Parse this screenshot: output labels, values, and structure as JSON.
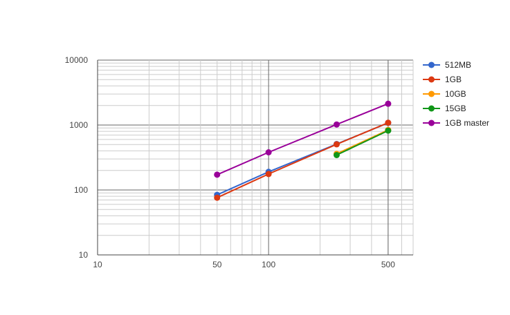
{
  "chart_data": {
    "type": "line",
    "x_scale": "log",
    "y_scale": "log",
    "xlim": [
      10,
      700
    ],
    "ylim": [
      10,
      10000
    ],
    "x_ticks": [
      10,
      50,
      100,
      500
    ],
    "x_tick_labels": [
      "10",
      "50",
      "100",
      "500"
    ],
    "y_ticks": [
      10,
      100,
      1000,
      10000
    ],
    "y_tick_labels": [
      "10",
      "100",
      "1000",
      "10000"
    ],
    "grid": true,
    "legend_position": "right",
    "series": [
      {
        "name": "512MB",
        "color": "#3366cc",
        "points": [
          [
            50,
            84
          ],
          [
            100,
            190
          ],
          [
            250,
            510
          ],
          [
            500,
            1080
          ]
        ]
      },
      {
        "name": "1GB",
        "color": "#dc3912",
        "points": [
          [
            50,
            76
          ],
          [
            100,
            176
          ],
          [
            250,
            505
          ],
          [
            500,
            1085
          ]
        ]
      },
      {
        "name": "10GB",
        "color": "#ff9900",
        "points": [
          [
            250,
            360
          ],
          [
            500,
            840
          ]
        ]
      },
      {
        "name": "15GB",
        "color": "#109618",
        "points": [
          [
            250,
            345
          ],
          [
            500,
            820
          ]
        ]
      },
      {
        "name": "1GB master",
        "color": "#990099",
        "points": [
          [
            50,
            172
          ],
          [
            100,
            380
          ],
          [
            250,
            1020
          ],
          [
            500,
            2130
          ]
        ]
      }
    ]
  }
}
